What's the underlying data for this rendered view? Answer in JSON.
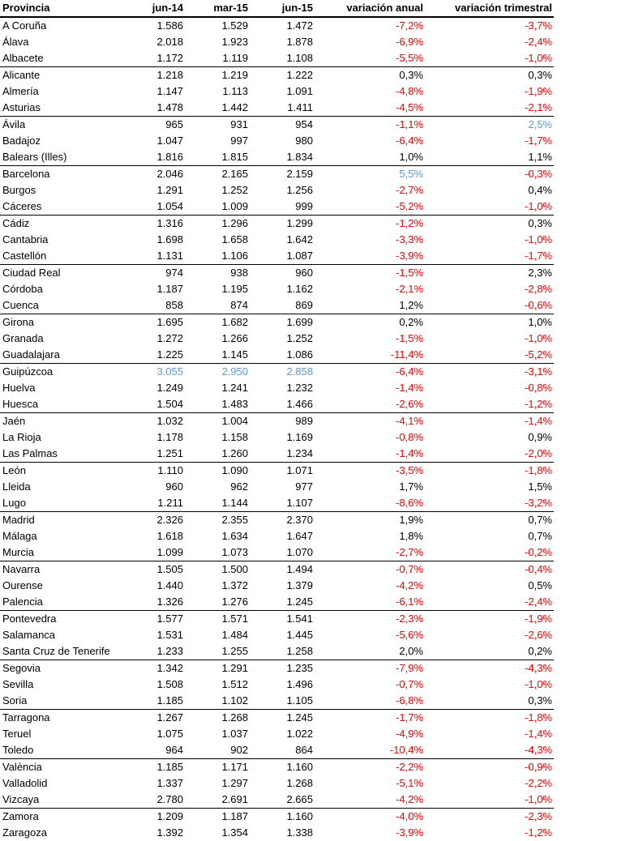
{
  "colors": {
    "negative": "#ff0000",
    "highlight": "#5b9bd5",
    "text": "#000000"
  },
  "headers": [
    "Provincia",
    "jun-14",
    "mar-15",
    "jun-15",
    "variación anual",
    "variación trimestral"
  ],
  "rows": [
    {
      "cells": [
        "A Coruña",
        "1.586",
        "1.529",
        "1.472",
        "-7,2%",
        "-3,7%"
      ]
    },
    {
      "cells": [
        "Álava",
        "2.018",
        "1.923",
        "1.878",
        "-6,9%",
        "-2,4%"
      ]
    },
    {
      "cells": [
        "Albacete",
        "1.172",
        "1.119",
        "1.108",
        "-5,5%",
        "-1,0%"
      ]
    },
    {
      "cells": [
        "Alicante",
        "1.218",
        "1.219",
        "1.222",
        "0,3%",
        "0,3%"
      ]
    },
    {
      "cells": [
        "Almería",
        "1.147",
        "1.113",
        "1.091",
        "-4,8%",
        "-1,9%"
      ]
    },
    {
      "cells": [
        "Asturias",
        "1.478",
        "1.442",
        "1.411",
        "-4,5%",
        "-2,1%"
      ]
    },
    {
      "cells": [
        "Ávila",
        "965",
        "931",
        "954",
        "-1,1%",
        "2,5%"
      ],
      "highlight": [
        5
      ]
    },
    {
      "cells": [
        "Badajoz",
        "1.047",
        "997",
        "980",
        "-6,4%",
        "-1,7%"
      ]
    },
    {
      "cells": [
        "Balears (Illes)",
        "1.816",
        "1.815",
        "1.834",
        "1,0%",
        "1,1%"
      ]
    },
    {
      "cells": [
        "Barcelona",
        "2.046",
        "2.165",
        "2.159",
        "5,5%",
        "-0,3%"
      ],
      "highlight": [
        4
      ]
    },
    {
      "cells": [
        "Burgos",
        "1.291",
        "1.252",
        "1.256",
        "-2,7%",
        "0,4%"
      ]
    },
    {
      "cells": [
        "Cáceres",
        "1.054",
        "1.009",
        "999",
        "-5,2%",
        "-1,0%"
      ]
    },
    {
      "cells": [
        "Cádiz",
        "1.316",
        "1.296",
        "1.299",
        "-1,2%",
        "0,3%"
      ]
    },
    {
      "cells": [
        "Cantabria",
        "1.698",
        "1.658",
        "1.642",
        "-3,3%",
        "-1,0%"
      ]
    },
    {
      "cells": [
        "Castellón",
        "1.131",
        "1.106",
        "1.087",
        "-3,9%",
        "-1,7%"
      ]
    },
    {
      "cells": [
        "Ciudad Real",
        "974",
        "938",
        "960",
        "-1,5%",
        "2,3%"
      ]
    },
    {
      "cells": [
        "Córdoba",
        "1.187",
        "1.195",
        "1.162",
        "-2,1%",
        "-2,8%"
      ]
    },
    {
      "cells": [
        "Cuenca",
        "858",
        "874",
        "869",
        "1,2%",
        "-0,6%"
      ]
    },
    {
      "cells": [
        "Girona",
        "1.695",
        "1.682",
        "1.699",
        "0,2%",
        "1,0%"
      ]
    },
    {
      "cells": [
        "Granada",
        "1.272",
        "1.266",
        "1.252",
        "-1,5%",
        "-1,0%"
      ]
    },
    {
      "cells": [
        "Guadalajara",
        "1.225",
        "1.145",
        "1.086",
        "-11,4%",
        "-5,2%"
      ]
    },
    {
      "cells": [
        "Guipúzcoa",
        "3.055",
        "2.950",
        "2.858",
        "-6,4%",
        "-3,1%"
      ],
      "highlight": [
        1,
        2,
        3
      ]
    },
    {
      "cells": [
        "Huelva",
        "1.249",
        "1.241",
        "1.232",
        "-1,4%",
        "-0,8%"
      ]
    },
    {
      "cells": [
        "Huesca",
        "1.504",
        "1.483",
        "1.466",
        "-2,6%",
        "-1,2%"
      ]
    },
    {
      "cells": [
        "Jaén",
        "1.032",
        "1.004",
        "989",
        "-4,1%",
        "-1,4%"
      ]
    },
    {
      "cells": [
        "La Rioja",
        "1.178",
        "1.158",
        "1.169",
        "-0,8%",
        "0,9%"
      ]
    },
    {
      "cells": [
        "Las Palmas",
        "1.251",
        "1.260",
        "1.234",
        "-1,4%",
        "-2,0%"
      ]
    },
    {
      "cells": [
        "León",
        "1.110",
        "1.090",
        "1.071",
        "-3,5%",
        "-1,8%"
      ]
    },
    {
      "cells": [
        "Lleida",
        "960",
        "962",
        "977",
        "1,7%",
        "1,5%"
      ]
    },
    {
      "cells": [
        "Lugo",
        "1.211",
        "1.144",
        "1.107",
        "-8,6%",
        "-3,2%"
      ]
    },
    {
      "cells": [
        "Madrid",
        "2.326",
        "2.355",
        "2.370",
        "1,9%",
        "0,7%"
      ]
    },
    {
      "cells": [
        "Málaga",
        "1.618",
        "1.634",
        "1.647",
        "1,8%",
        "0,7%"
      ]
    },
    {
      "cells": [
        "Murcia",
        "1.099",
        "1.073",
        "1.070",
        "-2,7%",
        "-0,2%"
      ]
    },
    {
      "cells": [
        "Navarra",
        "1.505",
        "1.500",
        "1.494",
        "-0,7%",
        "-0,4%"
      ]
    },
    {
      "cells": [
        "Ourense",
        "1.440",
        "1.372",
        "1.379",
        "-4,2%",
        "0,5%"
      ]
    },
    {
      "cells": [
        "Palencia",
        "1.326",
        "1.276",
        "1.245",
        "-6,1%",
        "-2,4%"
      ]
    },
    {
      "cells": [
        "Pontevedra",
        "1.577",
        "1.571",
        "1.541",
        "-2,3%",
        "-1,9%"
      ]
    },
    {
      "cells": [
        "Salamanca",
        "1.531",
        "1.484",
        "1.445",
        "-5,6%",
        "-2,6%"
      ]
    },
    {
      "cells": [
        "Santa Cruz de Tenerife",
        "1.233",
        "1.255",
        "1.258",
        "2,0%",
        "0,2%"
      ]
    },
    {
      "cells": [
        "Segovia",
        "1.342",
        "1.291",
        "1.235",
        "-7,9%",
        "-4,3%"
      ]
    },
    {
      "cells": [
        "Sevilla",
        "1.508",
        "1.512",
        "1.496",
        "-0,7%",
        "-1,0%"
      ]
    },
    {
      "cells": [
        "Soria",
        "1.185",
        "1.102",
        "1.105",
        "-6,8%",
        "0,3%"
      ]
    },
    {
      "cells": [
        "Tarragona",
        "1.267",
        "1.268",
        "1.245",
        "-1,7%",
        "-1,8%"
      ]
    },
    {
      "cells": [
        "Teruel",
        "1.075",
        "1.037",
        "1.022",
        "-4,9%",
        "-1,4%"
      ]
    },
    {
      "cells": [
        "Toledo",
        "964",
        "902",
        "864",
        "-10,4%",
        "-4,3%"
      ]
    },
    {
      "cells": [
        "València",
        "1.185",
        "1.171",
        "1.160",
        "-2,2%",
        "-0,9%"
      ]
    },
    {
      "cells": [
        "Valladolid",
        "1.337",
        "1.297",
        "1.268",
        "-5,1%",
        "-2,2%"
      ]
    },
    {
      "cells": [
        "Vizcaya",
        "2.780",
        "2.691",
        "2.665",
        "-4,2%",
        "-1,0%"
      ]
    },
    {
      "cells": [
        "Zamora",
        "1.209",
        "1.187",
        "1.160",
        "-4,0%",
        "-2,3%"
      ]
    },
    {
      "cells": [
        "Zaragoza",
        "1.392",
        "1.354",
        "1.338",
        "-3,9%",
        "-1,2%"
      ]
    }
  ]
}
